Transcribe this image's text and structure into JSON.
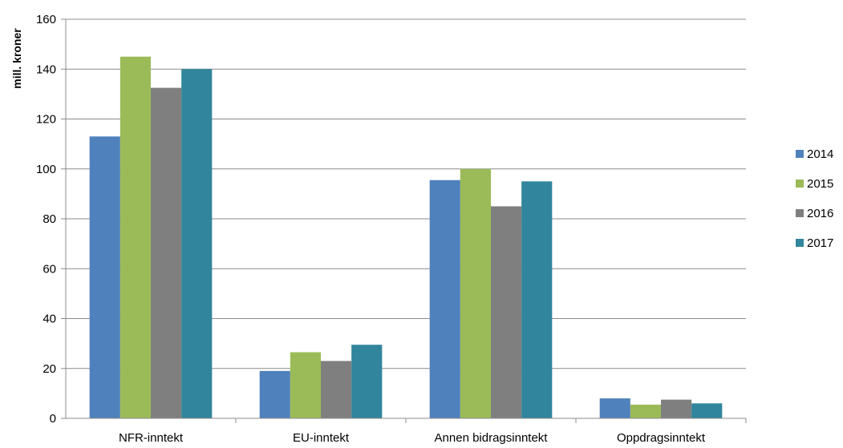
{
  "chart_data": {
    "type": "bar",
    "title": "",
    "xlabel": "",
    "ylabel": "mill. kroner",
    "ylim": [
      0,
      160
    ],
    "yticks": [
      0,
      20,
      40,
      60,
      80,
      100,
      120,
      140,
      160
    ],
    "grid": true,
    "legend_position": "right",
    "categories": [
      "NFR-inntekt",
      "EU-inntekt",
      "Annen bidragsinntekt",
      "Oppdragsinntekt"
    ],
    "series": [
      {
        "name": "2014",
        "color": "#4F81BD",
        "values": [
          113,
          19,
          95.5,
          8
        ]
      },
      {
        "name": "2015",
        "color": "#9BBB59",
        "values": [
          145,
          26.5,
          100,
          5.5
        ]
      },
      {
        "name": "2016",
        "color": "#7F7F7F",
        "values": [
          132.5,
          23,
          85,
          7.5
        ]
      },
      {
        "name": "2017",
        "color": "#31859C",
        "values": [
          140,
          29.5,
          95,
          6
        ]
      }
    ]
  }
}
